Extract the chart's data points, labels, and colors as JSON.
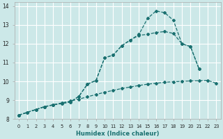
{
  "xlabel": "Humidex (Indice chaleur)",
  "bg_color": "#cce8e8",
  "grid_color": "#ffffff",
  "line_color": "#1a7070",
  "xlim": [
    -0.5,
    23.5
  ],
  "ylim": [
    8,
    14.2
  ],
  "xticks": [
    0,
    1,
    2,
    3,
    4,
    5,
    6,
    7,
    8,
    9,
    10,
    11,
    12,
    13,
    14,
    15,
    16,
    17,
    18,
    19,
    20,
    21,
    22,
    23
  ],
  "yticks": [
    8,
    9,
    10,
    11,
    12,
    13,
    14
  ],
  "curve_bottom_x": [
    0,
    1,
    2,
    3,
    4,
    5,
    6,
    7,
    8,
    9,
    10,
    11,
    12,
    13,
    14,
    15,
    16,
    17,
    18,
    19,
    20,
    21,
    22,
    23
  ],
  "curve_bottom_y": [
    8.2,
    8.35,
    8.5,
    8.65,
    8.75,
    8.85,
    8.95,
    9.05,
    9.18,
    9.3,
    9.42,
    9.52,
    9.62,
    9.7,
    9.78,
    9.85,
    9.9,
    9.95,
    9.98,
    10.0,
    10.02,
    10.03,
    10.05,
    9.9
  ],
  "curve_mid_x": [
    0,
    1,
    2,
    3,
    4,
    5,
    6,
    7,
    8,
    9,
    10,
    11,
    12,
    13,
    14,
    15,
    16,
    17,
    18,
    19,
    20,
    21
  ],
  "curve_mid_y": [
    8.2,
    8.35,
    8.5,
    8.65,
    8.75,
    8.82,
    8.9,
    9.2,
    9.85,
    10.05,
    11.25,
    11.4,
    11.9,
    12.2,
    12.45,
    12.5,
    12.6,
    12.65,
    12.55,
    12.0,
    11.85,
    10.65
  ],
  "curve_top_x": [
    0,
    1,
    2,
    3,
    4,
    5,
    6,
    7,
    8,
    9,
    10,
    11,
    12,
    13,
    14,
    15,
    16,
    17,
    18,
    19,
    20,
    21
  ],
  "curve_top_y": [
    8.2,
    8.35,
    8.5,
    8.65,
    8.75,
    8.82,
    8.9,
    9.2,
    9.85,
    10.05,
    11.25,
    11.4,
    11.9,
    12.2,
    12.5,
    13.35,
    13.75,
    13.65,
    13.25,
    12.0,
    11.85,
    10.65
  ]
}
